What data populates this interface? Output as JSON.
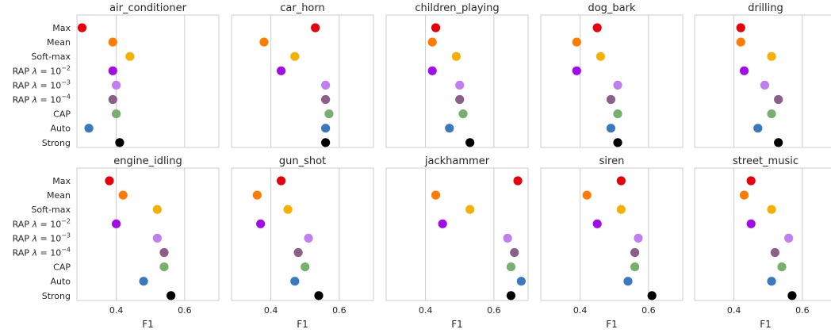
{
  "chart_data": {
    "type": "scatter",
    "xlabel": "F1",
    "xlim": [
      0.285,
      0.7
    ],
    "xticks": [
      0.4,
      0.6
    ],
    "xtick_labels": [
      "0.4",
      "0.6"
    ],
    "grid": true,
    "legend": "none",
    "methods": [
      "Max",
      "Mean",
      "Soft-max",
      "RAP λ=10⁻²",
      "RAP λ=10⁻³",
      "RAP λ=10⁻⁴",
      "CAP",
      "Auto",
      "Strong"
    ],
    "method_labels": [
      {
        "name": "Max"
      },
      {
        "name": "Mean"
      },
      {
        "name": "Soft-max"
      },
      {
        "pre": "RAP ",
        "lambda": "λ",
        "mid": " = 10",
        "sup": "−2"
      },
      {
        "pre": "RAP ",
        "lambda": "λ",
        "mid": " = 10",
        "sup": "−3"
      },
      {
        "pre": "RAP ",
        "lambda": "λ",
        "mid": " = 10",
        "sup": "−4"
      },
      {
        "name": "CAP"
      },
      {
        "name": "Auto"
      },
      {
        "name": "Strong"
      }
    ],
    "colors": [
      "#e8000b",
      "#ff7c00",
      "#f5b002",
      "#a20bea",
      "#c17ef0",
      "#8c5f8b",
      "#77b06e",
      "#3a79c0",
      "#000000"
    ],
    "panels": [
      {
        "title": "air_conditioner",
        "values": [
          0.3,
          0.39,
          0.44,
          0.39,
          0.4,
          0.39,
          0.4,
          0.32,
          0.41
        ]
      },
      {
        "title": "car_horn",
        "values": [
          0.53,
          0.38,
          0.47,
          0.43,
          0.56,
          0.56,
          0.57,
          0.56,
          0.56
        ]
      },
      {
        "title": "children_playing",
        "values": [
          0.43,
          0.42,
          0.49,
          0.42,
          0.5,
          0.5,
          0.51,
          0.47,
          0.53
        ]
      },
      {
        "title": "dog_bark",
        "values": [
          0.45,
          0.39,
          0.46,
          0.39,
          0.51,
          0.49,
          0.51,
          0.49,
          0.51
        ]
      },
      {
        "title": "drilling",
        "values": [
          0.42,
          0.42,
          0.51,
          0.43,
          0.49,
          0.53,
          0.51,
          0.47,
          0.53
        ]
      },
      {
        "title": "engine_idling",
        "values": [
          0.38,
          0.42,
          0.52,
          0.4,
          0.52,
          0.54,
          0.54,
          0.48,
          0.56
        ]
      },
      {
        "title": "gun_shot",
        "values": [
          0.43,
          0.36,
          0.45,
          0.37,
          0.51,
          0.48,
          0.5,
          0.47,
          0.54
        ]
      },
      {
        "title": "jackhammer",
        "values": [
          0.67,
          0.43,
          0.53,
          0.45,
          0.64,
          0.66,
          0.65,
          0.68,
          0.65
        ]
      },
      {
        "title": "siren",
        "values": [
          0.52,
          0.42,
          0.52,
          0.45,
          0.57,
          0.56,
          0.56,
          0.54,
          0.61
        ]
      },
      {
        "title": "street_music",
        "values": [
          0.45,
          0.43,
          0.51,
          0.45,
          0.56,
          0.52,
          0.54,
          0.51,
          0.57
        ]
      }
    ]
  }
}
